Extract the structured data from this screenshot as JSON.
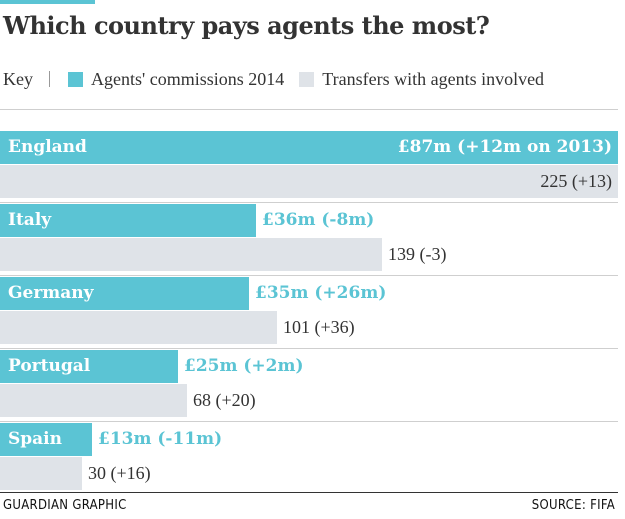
{
  "colors": {
    "commission": "#5bc4d4",
    "transfers": "#dfe3e8",
    "accent_rule": "#5bc4d4",
    "text": "#333333"
  },
  "chart_data": {
    "type": "bar",
    "orientation": "horizontal",
    "title": "Which country pays agents the most?",
    "key_label": "Key",
    "categories": [
      "England",
      "Italy",
      "Germany",
      "Portugal",
      "Spain"
    ],
    "series": [
      {
        "name": "Agents' commissions 2014",
        "unit": "£m",
        "values": [
          87,
          36,
          35,
          25,
          13
        ],
        "labels": [
          "£87m (+12m on 2013)",
          "£36m (-8m)",
          "£35m (+26m)",
          "£25m (+2m)",
          "£13m (-11m)"
        ]
      },
      {
        "name": "Transfers with agents involved",
        "values": [
          225,
          139,
          101,
          68,
          30
        ],
        "labels": [
          "225 (+13)",
          "139 (-3)",
          "101 (+36)",
          "68 (+20)",
          "30 (+16)"
        ]
      }
    ]
  },
  "footer": {
    "credit": "GUARDIAN GRAPHIC",
    "source": "SOURCE: FIFA"
  }
}
